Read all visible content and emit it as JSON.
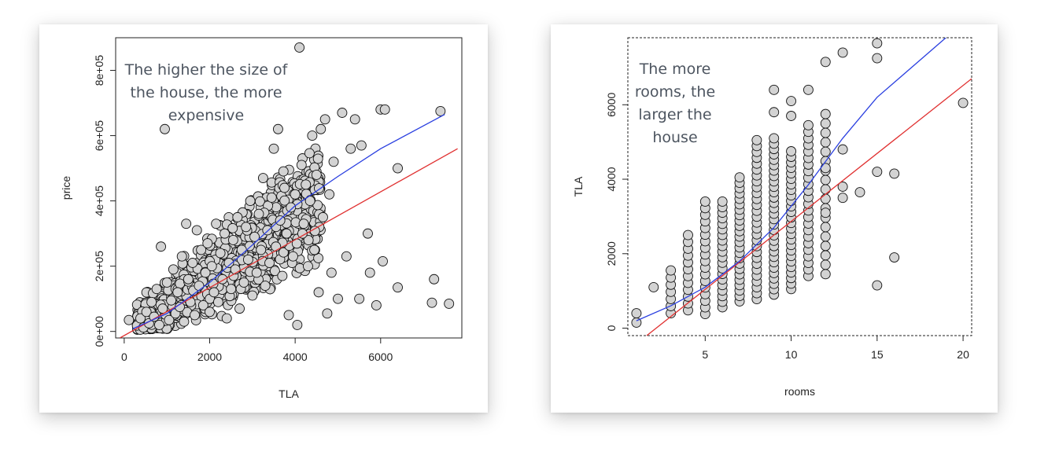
{
  "chart_data": [
    {
      "type": "scatter",
      "xlabel": "TLA",
      "ylabel": "price",
      "xlim": [
        -200,
        7900
      ],
      "ylim": [
        -20000,
        900000
      ],
      "xticks": [
        0,
        2000,
        4000,
        6000
      ],
      "xtick_labels": [
        "0",
        "2000",
        "4000",
        "6000"
      ],
      "yticks": [
        0,
        200000,
        400000,
        600000,
        800000
      ],
      "ytick_labels": [
        "0e+00",
        "2e+05",
        "4e+05",
        "6e+05",
        "8e+05"
      ],
      "annotation": [
        "The higher the size of",
        "the house, the more",
        "expensive"
      ],
      "point_color": "#d3d3d3",
      "points": [
        [
          110,
          35000
        ],
        [
          300,
          18000
        ],
        [
          380,
          40000
        ],
        [
          450,
          12000
        ],
        [
          520,
          60000
        ],
        [
          580,
          25000
        ],
        [
          640,
          90000
        ],
        [
          700,
          45000
        ],
        [
          760,
          130000
        ],
        [
          820,
          20000
        ],
        [
          860,
          260000
        ],
        [
          900,
          70000
        ],
        [
          950,
          620000
        ],
        [
          1000,
          150000
        ],
        [
          1050,
          35000
        ],
        [
          1100,
          95000
        ],
        [
          1150,
          190000
        ],
        [
          1200,
          55000
        ],
        [
          1250,
          120000
        ],
        [
          1300,
          75000
        ],
        [
          1350,
          230000
        ],
        [
          1400,
          30000
        ],
        [
          1450,
          330000
        ],
        [
          1500,
          160000
        ],
        [
          1550,
          90000
        ],
        [
          1600,
          210000
        ],
        [
          1650,
          50000
        ],
        [
          1700,
          310000
        ],
        [
          1750,
          140000
        ],
        [
          1800,
          250000
        ],
        [
          1850,
          80000
        ],
        [
          1900,
          180000
        ],
        [
          1950,
          270000
        ],
        [
          2000,
          60000
        ],
        [
          2050,
          200000
        ],
        [
          2100,
          120000
        ],
        [
          2150,
          330000
        ],
        [
          2200,
          90000
        ],
        [
          2250,
          240000
        ],
        [
          2300,
          160000
        ],
        [
          2350,
          300000
        ],
        [
          2400,
          40000
        ],
        [
          2450,
          210000
        ],
        [
          2500,
          130000
        ],
        [
          2550,
          280000
        ],
        [
          2600,
          190000
        ],
        [
          2650,
          350000
        ],
        [
          2700,
          70000
        ],
        [
          2750,
          250000
        ],
        [
          2800,
          150000
        ],
        [
          2850,
          320000
        ],
        [
          2900,
          220000
        ],
        [
          2950,
          400000
        ],
        [
          3000,
          110000
        ],
        [
          3050,
          290000
        ],
        [
          3100,
          180000
        ],
        [
          3150,
          360000
        ],
        [
          3200,
          250000
        ],
        [
          3250,
          470000
        ],
        [
          3300,
          140000
        ],
        [
          3350,
          310000
        ],
        [
          3400,
          210000
        ],
        [
          3450,
          410000
        ],
        [
          3500,
          560000
        ],
        [
          3550,
          260000
        ],
        [
          3600,
          620000
        ],
        [
          3650,
          340000
        ],
        [
          3700,
          170000
        ],
        [
          3750,
          440000
        ],
        [
          3800,
          300000
        ],
        [
          3850,
          50000
        ],
        [
          3900,
          380000
        ],
        [
          3950,
          230000
        ],
        [
          4000,
          420000
        ],
        [
          4050,
          20000
        ],
        [
          4100,
          870000
        ],
        [
          4150,
          510000
        ],
        [
          4200,
          330000
        ],
        [
          4250,
          450000
        ],
        [
          4300,
          200000
        ],
        [
          4350,
          400000
        ],
        [
          4400,
          600000
        ],
        [
          4450,
          250000
        ],
        [
          4500,
          480000
        ],
        [
          4550,
          120000
        ],
        [
          4600,
          620000
        ],
        [
          4650,
          350000
        ],
        [
          4700,
          650000
        ],
        [
          4750,
          55000
        ],
        [
          4800,
          420000
        ],
        [
          4850,
          180000
        ],
        [
          4900,
          520000
        ],
        [
          5000,
          100000
        ],
        [
          5100,
          670000
        ],
        [
          5200,
          230000
        ],
        [
          5300,
          560000
        ],
        [
          5400,
          650000
        ],
        [
          5500,
          100000
        ],
        [
          5550,
          570000
        ],
        [
          5700,
          300000
        ],
        [
          5750,
          180000
        ],
        [
          5900,
          80000
        ],
        [
          6000,
          680000
        ],
        [
          6050,
          215000
        ],
        [
          6100,
          680000
        ],
        [
          6400,
          500000
        ],
        [
          6400,
          135000
        ],
        [
          7200,
          88000
        ],
        [
          7250,
          160000
        ],
        [
          7400,
          675000
        ],
        [
          7600,
          85000
        ]
      ],
      "series": [
        {
          "type": "line",
          "color": "#e03030",
          "points": [
            [
              -100,
              -20000
            ],
            [
              7800,
              560000
            ]
          ]
        },
        {
          "type": "line",
          "color": "#2a3fe0",
          "points": [
            [
              200,
              8000
            ],
            [
              1000,
              55000
            ],
            [
              2000,
              150000
            ],
            [
              3000,
              265000
            ],
            [
              4000,
              385000
            ],
            [
              5000,
              475000
            ],
            [
              6000,
              560000
            ],
            [
              7500,
              665000
            ]
          ]
        }
      ]
    },
    {
      "type": "scatter",
      "xlabel": "rooms",
      "ylabel": "TLA",
      "xlim": [
        0.5,
        20.5
      ],
      "ylim": [
        -200,
        7800
      ],
      "xticks": [
        5,
        10,
        15,
        20
      ],
      "xtick_labels": [
        "5",
        "10",
        "15",
        "20"
      ],
      "yticks": [
        0,
        2000,
        4000,
        6000
      ],
      "ytick_labels": [
        "0",
        "2000",
        "4000",
        "6000"
      ],
      "annotation": [
        "The more",
        "rooms, the",
        "larger the",
        "house"
      ],
      "point_color": "#d3d3d3",
      "columns": [
        {
          "x": 3,
          "min": 400,
          "max": 1550,
          "count": 7
        },
        {
          "x": 4,
          "min": 480,
          "max": 2500,
          "count": 12
        },
        {
          "x": 5,
          "min": 380,
          "max": 3400,
          "count": 18
        },
        {
          "x": 6,
          "min": 560,
          "max": 3400,
          "count": 20
        },
        {
          "x": 7,
          "min": 720,
          "max": 4050,
          "count": 24
        },
        {
          "x": 8,
          "min": 780,
          "max": 5050,
          "count": 28
        },
        {
          "x": 9,
          "min": 900,
          "max": 5100,
          "count": 30
        },
        {
          "x": 10,
          "min": 1050,
          "max": 4750,
          "count": 26
        },
        {
          "x": 11,
          "min": 1400,
          "max": 5450,
          "count": 24
        },
        {
          "x": 12,
          "min": 1450,
          "max": 5750,
          "count": 18
        }
      ],
      "points": [
        [
          1,
          150
        ],
        [
          1,
          400
        ],
        [
          2,
          1100
        ],
        [
          9,
          5800
        ],
        [
          9,
          6400
        ],
        [
          10,
          6100
        ],
        [
          10,
          5700
        ],
        [
          11,
          6400
        ],
        [
          12,
          7150
        ],
        [
          13,
          7400
        ],
        [
          13,
          4800
        ],
        [
          13,
          3800
        ],
        [
          13,
          3500
        ],
        [
          14,
          3650
        ],
        [
          15,
          7650
        ],
        [
          15,
          7250
        ],
        [
          15,
          4200
        ],
        [
          15,
          1150
        ],
        [
          16,
          4150
        ],
        [
          16,
          1900
        ],
        [
          20,
          6050
        ],
        [
          12,
          4300
        ],
        [
          12,
          3100
        ]
      ],
      "series": [
        {
          "type": "line",
          "color": "#e03030",
          "points": [
            [
              1.6,
              -200
            ],
            [
              20.5,
              6700
            ]
          ]
        },
        {
          "type": "line",
          "color": "#2a3fe0",
          "points": [
            [
              1,
              200
            ],
            [
              3,
              600
            ],
            [
              5,
              1100
            ],
            [
              7,
              1800
            ],
            [
              9,
              2700
            ],
            [
              11,
              3850
            ],
            [
              13,
              5100
            ],
            [
              15,
              6200
            ],
            [
              19,
              7800
            ]
          ]
        }
      ]
    }
  ]
}
